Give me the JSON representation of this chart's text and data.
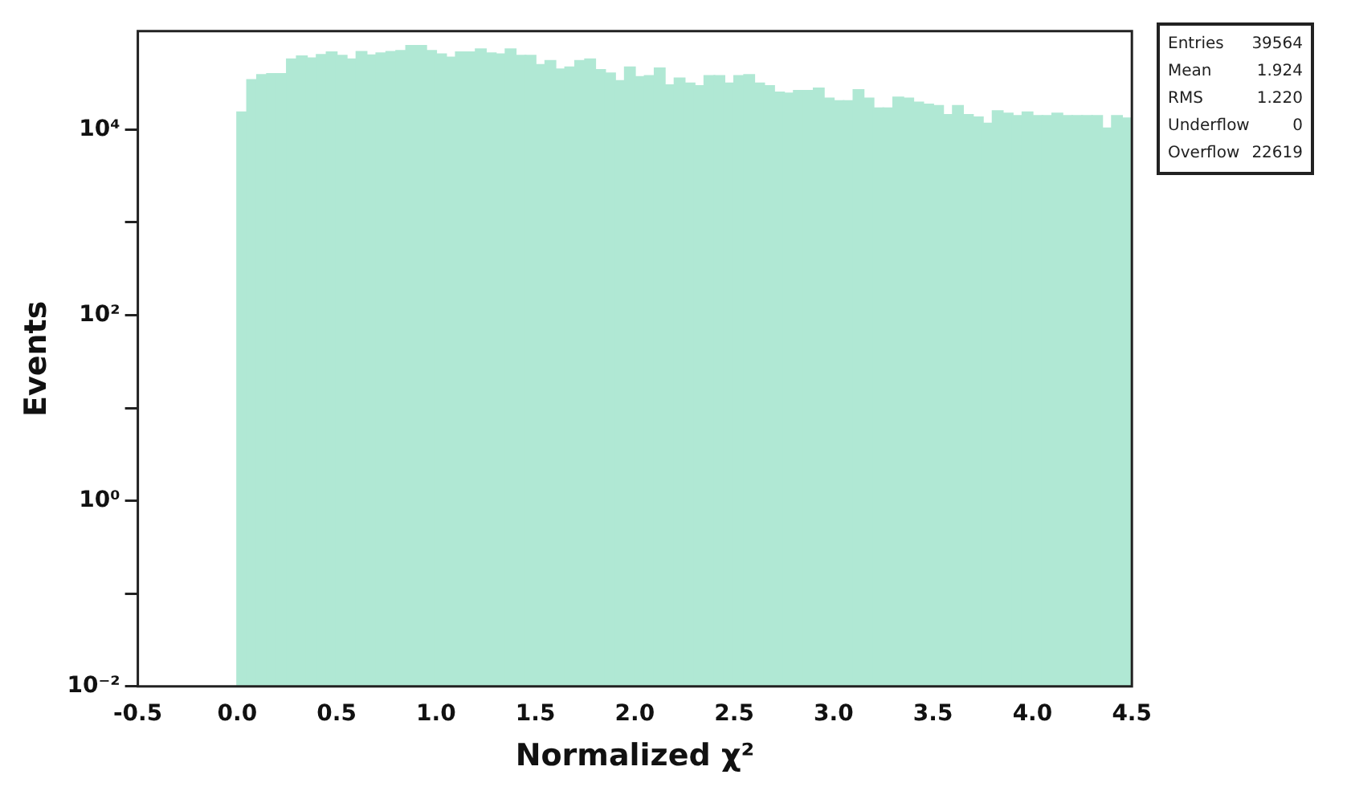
{
  "chart_data": {
    "type": "histogram",
    "xlabel": "Normalized χ²",
    "ylabel": "Events",
    "log": "y",
    "grid": false,
    "legend": false,
    "color": "#b0e8d4",
    "bins": [
      0,
      0.05,
      0.1,
      0.15,
      0.2,
      0.25,
      0.3,
      0.35,
      0.4,
      0.45,
      0.5,
      0.55,
      0.6,
      0.65,
      0.7,
      0.75,
      0.8,
      0.85,
      0.9,
      0.95,
      1,
      1.05,
      1.1,
      1.15,
      1.2,
      1.25,
      1.3,
      1.35,
      1.4,
      1.45,
      1.5,
      1.55,
      1.6,
      1.65,
      1.7,
      1.75,
      1.8,
      1.85,
      1.9,
      1.95,
      2,
      2.05,
      2.1,
      2.15,
      2.2,
      2.25,
      2.3,
      2.35,
      2.4,
      2.45,
      2.5,
      2.55,
      2.6,
      2.65,
      2.7,
      2.75,
      2.8,
      2.85,
      2.9,
      2.95,
      3,
      3.05,
      3.1,
      3.15,
      3.2,
      3.25,
      3.3,
      3.35,
      3.4,
      3.45,
      3.5,
      3.55,
      3.6,
      3.65,
      3.7,
      3.75,
      3.8,
      3.85,
      3.9,
      3.95,
      4,
      4.05,
      4.1,
      4.15,
      4.2,
      4.25,
      4.3,
      4.35,
      4.4,
      4.45,
      4.5
    ],
    "values": [
      15300,
      34200,
      38800,
      39700,
      39700,
      57000,
      61400,
      58400,
      63800,
      67900,
      62300,
      57000,
      68700,
      63000,
      66200,
      68700,
      70500,
      79800,
      79800,
      70500,
      64600,
      59800,
      67900,
      67900,
      73100,
      66200,
      64600,
      73100,
      62300,
      62300,
      49700,
      54900,
      44500,
      46700,
      54900,
      57000,
      43900,
      40200,
      33400,
      46700,
      36900,
      37800,
      45600,
      30000,
      35500,
      31400,
      29500,
      37800,
      37800,
      31400,
      37800,
      38800,
      31400,
      29500,
      25100,
      24500,
      26100,
      26100,
      27700,
      21600,
      20300,
      20300,
      26700,
      21600,
      16900,
      16900,
      22200,
      21600,
      19600,
      18600,
      18000,
      14400,
      18000,
      14400,
      13500,
      11600,
      15800,
      14900,
      14000,
      15300,
      14000,
      14000,
      14900,
      14000,
      14000,
      14000,
      14000,
      10300,
      14000,
      13200
    ],
    "xlim": [
      -0.5,
      4.5
    ],
    "xticks": [
      {
        "value": -0.5,
        "label": "-0.5"
      },
      {
        "value": 0,
        "label": "0.0"
      },
      {
        "value": 0.5,
        "label": "0.5"
      },
      {
        "value": 1,
        "label": "1.0"
      },
      {
        "value": 1.5,
        "label": "1.5"
      },
      {
        "value": 2,
        "label": "2.0"
      },
      {
        "value": 2.5,
        "label": "2.5"
      },
      {
        "value": 3,
        "label": "3.0"
      },
      {
        "value": 3.5,
        "label": "3.5"
      },
      {
        "value": 4,
        "label": "4.0"
      },
      {
        "value": 4.5,
        "label": "4.5"
      }
    ],
    "ylim": [
      0.01,
      115000
    ],
    "yticks": [
      {
        "value": 0.01,
        "label": "10⁻²"
      },
      {
        "value": 0.1,
        "label": null
      },
      {
        "value": 1,
        "label": "10⁰"
      },
      {
        "value": 10,
        "label": null
      },
      {
        "value": 100,
        "label": "10²"
      },
      {
        "value": 1000,
        "label": null
      },
      {
        "value": 10000,
        "label": "10⁴"
      }
    ],
    "annotations": [
      "Entries 39564",
      "Mean 1.924",
      "RMS 1.220",
      "Underflow 0",
      "Overflow 22619"
    ]
  }
}
